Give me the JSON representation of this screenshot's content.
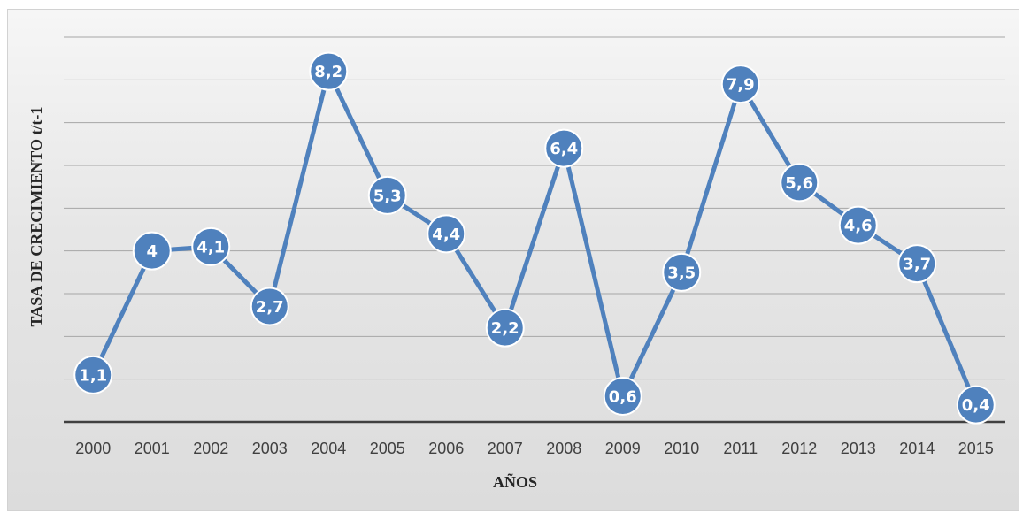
{
  "chart_data": {
    "type": "line",
    "title": "",
    "xlabel": "AÑOS",
    "ylabel": "TASA DE CRECIMIENTO t/t-1",
    "categories": [
      "2000",
      "2001",
      "2002",
      "2003",
      "2004",
      "2005",
      "2006",
      "2007",
      "2008",
      "2009",
      "2010",
      "2011",
      "2012",
      "2013",
      "2014",
      "2015"
    ],
    "series": [
      {
        "values": [
          1.1,
          4,
          4.1,
          2.7,
          8.2,
          5.3,
          4.4,
          2.2,
          6.4,
          0.6,
          3.5,
          7.9,
          5.6,
          4.6,
          3.7,
          0.4
        ],
        "labels": [
          "1,1",
          "4",
          "4,1",
          "2,7",
          "8,2",
          "5,3",
          "4,4",
          "2,2",
          "6,4",
          "0,6",
          "3,5",
          "7,9",
          "5,6",
          "4,6",
          "3,7",
          "0,4"
        ]
      }
    ],
    "ylim": [
      0,
      9
    ],
    "grid": true,
    "legend": "none",
    "colors": {
      "line": "#4f81bd",
      "marker": "#4f81bd",
      "marker_border": "#ffffff",
      "label_text": "#ffffff",
      "gridline": "#a6a6a6",
      "baseline": "#404040"
    }
  }
}
